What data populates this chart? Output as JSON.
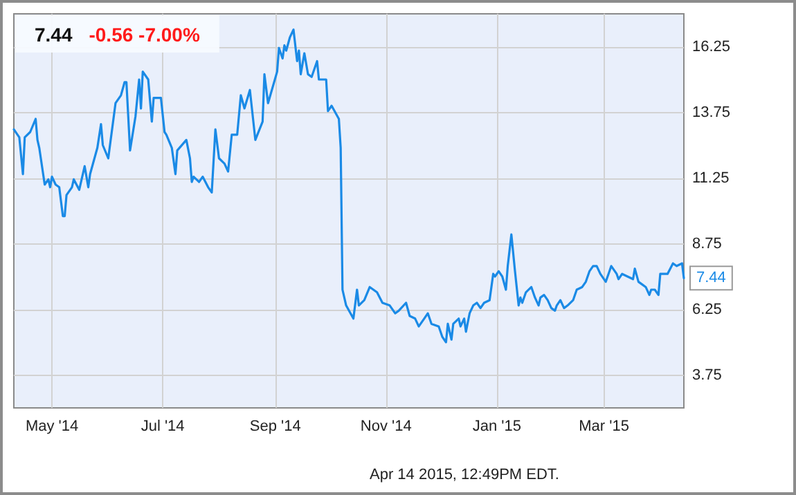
{
  "chart_data": {
    "type": "line",
    "title": "7.44",
    "subtitle": "-0.56 -7.00%",
    "x": [
      "2014-04-10",
      "2014-04-13",
      "2014-04-15",
      "2014-04-16",
      "2014-04-19",
      "2014-04-22",
      "2014-04-23",
      "2014-04-24",
      "2014-04-27",
      "2014-04-29",
      "2014-04-30",
      "2014-05-01",
      "2014-05-03",
      "2014-05-05",
      "2014-05-07",
      "2014-05-08",
      "2014-05-09",
      "2014-05-12",
      "2014-05-13",
      "2014-05-16",
      "2014-05-19",
      "2014-05-21",
      "2014-05-22",
      "2014-05-26",
      "2014-05-28",
      "2014-05-29",
      "2014-06-01",
      "2014-06-05",
      "2014-06-08",
      "2014-06-10",
      "2014-06-11",
      "2014-06-13",
      "2014-06-16",
      "2014-06-18",
      "2014-06-19",
      "2014-06-20",
      "2014-06-23",
      "2014-06-25",
      "2014-06-26",
      "2014-06-30",
      "2014-07-02",
      "2014-07-03",
      "2014-07-06",
      "2014-07-08",
      "2014-07-09",
      "2014-07-14",
      "2014-07-16",
      "2014-07-17",
      "2014-07-18",
      "2014-07-21",
      "2014-07-23",
      "2014-07-26",
      "2014-07-28",
      "2014-07-30",
      "2014-08-01",
      "2014-08-04",
      "2014-08-06",
      "2014-08-08",
      "2014-08-11",
      "2014-08-13",
      "2014-08-15",
      "2014-08-18",
      "2014-08-21",
      "2014-08-25",
      "2014-08-26",
      "2014-08-28",
      "2014-09-02",
      "2014-09-03",
      "2014-09-05",
      "2014-09-06",
      "2014-09-07",
      "2014-09-09",
      "2014-09-11",
      "2014-09-13",
      "2014-09-14",
      "2014-09-15",
      "2014-09-17",
      "2014-09-19",
      "2014-09-21",
      "2014-09-24",
      "2014-09-25",
      "2014-09-26",
      "2014-09-29",
      "2014-09-30",
      "2014-10-02",
      "2014-10-06",
      "2014-10-07",
      "2014-10-08",
      "2014-10-10",
      "2014-10-14",
      "2014-10-16",
      "2014-10-17",
      "2014-10-20",
      "2014-10-23",
      "2014-10-27",
      "2014-10-30",
      "2014-11-03",
      "2014-11-06",
      "2014-11-08",
      "2014-11-12",
      "2014-11-14",
      "2014-11-17",
      "2014-11-19",
      "2014-11-22",
      "2014-11-24",
      "2014-11-26",
      "2014-11-30",
      "2014-12-02",
      "2014-12-04",
      "2014-12-05",
      "2014-12-07",
      "2014-12-08",
      "2014-12-11",
      "2014-12-12",
      "2014-12-14",
      "2014-12-15",
      "2014-12-17",
      "2014-12-19",
      "2014-12-21",
      "2014-12-23",
      "2014-12-25",
      "2014-12-28",
      "2014-12-30",
      "2014-12-31",
      "2015-01-02",
      "2015-01-04",
      "2015-01-06",
      "2015-01-07",
      "2015-01-09",
      "2015-01-11",
      "2015-01-13",
      "2015-01-14",
      "2015-01-15",
      "2015-01-17",
      "2015-01-20",
      "2015-01-22",
      "2015-01-24",
      "2015-01-25",
      "2015-01-27",
      "2015-01-29",
      "2015-01-31",
      "2015-02-02",
      "2015-02-03",
      "2015-02-05",
      "2015-02-07",
      "2015-02-09",
      "2015-02-12",
      "2015-02-14",
      "2015-02-17",
      "2015-02-19",
      "2015-02-21",
      "2015-02-23",
      "2015-02-25",
      "2015-02-27",
      "2015-03-02",
      "2015-03-04",
      "2015-03-05",
      "2015-03-08",
      "2015-03-09",
      "2015-03-11",
      "2015-03-14",
      "2015-03-17",
      "2015-03-18",
      "2015-03-20",
      "2015-03-22",
      "2015-03-24",
      "2015-03-26",
      "2015-03-27",
      "2015-03-29",
      "2015-03-31",
      "2015-04-01",
      "2015-04-02",
      "2015-04-05",
      "2015-04-08",
      "2015-04-10",
      "2015-04-13",
      "2015-04-14"
    ],
    "values": [
      13.1,
      12.8,
      11.4,
      12.8,
      13.0,
      13.5,
      12.7,
      12.4,
      11.0,
      11.2,
      10.9,
      11.3,
      11.0,
      10.9,
      9.8,
      9.8,
      10.6,
      10.9,
      11.2,
      10.8,
      11.7,
      10.9,
      11.4,
      12.4,
      13.3,
      12.5,
      12.0,
      14.1,
      14.4,
      14.9,
      14.9,
      12.3,
      13.6,
      15.0,
      13.9,
      15.3,
      15.0,
      13.4,
      14.3,
      14.3,
      13.0,
      12.9,
      12.4,
      11.4,
      12.3,
      12.7,
      12.0,
      11.1,
      11.3,
      11.1,
      11.3,
      10.9,
      10.7,
      13.1,
      12.0,
      11.8,
      11.5,
      12.9,
      12.9,
      14.4,
      13.9,
      14.6,
      12.7,
      13.4,
      15.2,
      14.1,
      15.3,
      16.2,
      15.8,
      16.3,
      16.1,
      16.6,
      16.9,
      15.7,
      16.1,
      15.2,
      16.0,
      15.2,
      15.1,
      15.7,
      15.0,
      15.0,
      15.0,
      13.8,
      14.0,
      13.5,
      12.4,
      7.0,
      6.4,
      5.9,
      7.0,
      6.4,
      6.6,
      7.1,
      6.9,
      6.5,
      6.4,
      6.1,
      6.2,
      6.5,
      6.0,
      5.9,
      5.6,
      5.9,
      6.1,
      5.7,
      5.6,
      5.2,
      5.0,
      5.7,
      5.1,
      5.7,
      5.9,
      5.6,
      5.9,
      5.4,
      6.1,
      6.4,
      6.5,
      6.3,
      6.5,
      6.6,
      7.6,
      7.5,
      7.7,
      7.5,
      7.0,
      7.9,
      9.1,
      7.7,
      6.4,
      6.7,
      6.5,
      6.9,
      7.1,
      6.7,
      6.4,
      6.7,
      6.8,
      6.6,
      6.3,
      6.2,
      6.4,
      6.6,
      6.3,
      6.4,
      6.6,
      7.0,
      7.1,
      7.3,
      7.7,
      7.9,
      7.9,
      7.6,
      7.3,
      7.7,
      7.9,
      7.6,
      7.4,
      7.6,
      7.5,
      7.4,
      7.8,
      7.3,
      7.2,
      7.1,
      6.8,
      7.0,
      7.0,
      6.8,
      7.6,
      7.6,
      7.6,
      8.0,
      7.9,
      8.0,
      7.44
    ],
    "color": "#1a8ae6",
    "xlim": [
      "2014-04-10",
      "2015-04-14"
    ],
    "xticks": [
      {
        "value": "2014-05-01",
        "label": "May '14"
      },
      {
        "value": "2014-07-01",
        "label": "Jul '14"
      },
      {
        "value": "2014-09-01",
        "label": "Sep '14"
      },
      {
        "value": "2014-11-01",
        "label": "Nov '14"
      },
      {
        "value": "2015-01-01",
        "label": "Jan '15"
      },
      {
        "value": "2015-03-01",
        "label": "Mar '15"
      }
    ],
    "ylim": [
      2.5,
      17.5
    ],
    "yticks": [
      3.75,
      6.25,
      8.75,
      11.25,
      13.75,
      16.25
    ],
    "grid": true,
    "annotations": [
      {
        "text": "7.44",
        "x": "2015-04-14",
        "y": 7.44
      },
      "Apr 14 2015, 12:49PM EDT."
    ]
  }
}
